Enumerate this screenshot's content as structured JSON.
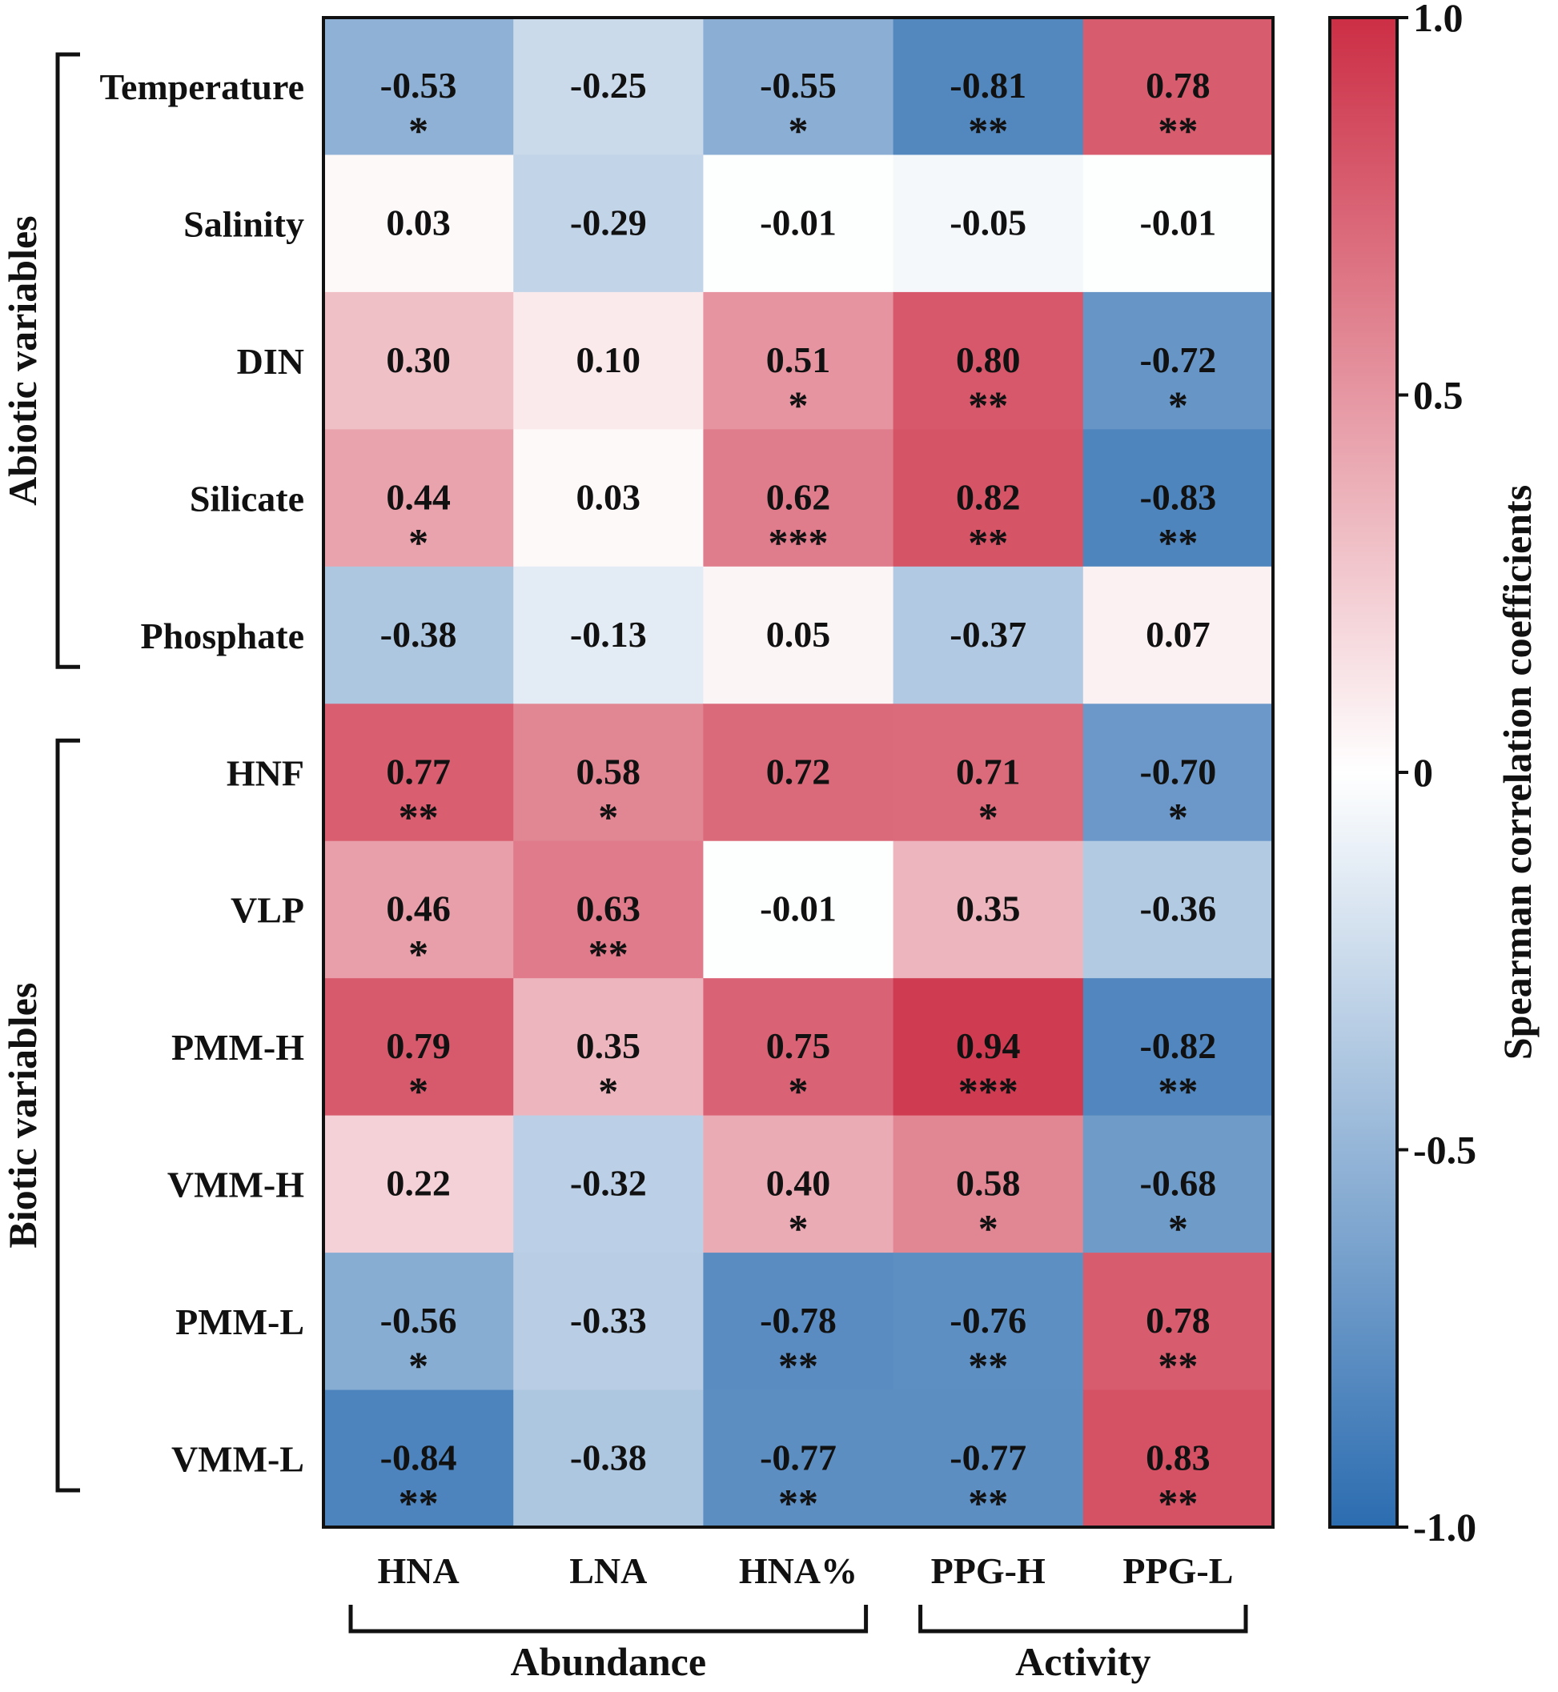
{
  "chart_data": {
    "type": "heatmap",
    "rows": [
      "Temperature",
      "Salinity",
      "DIN",
      "Silicate",
      "Phosphate",
      "HNF",
      "VLP",
      "PMM-H",
      "VMM-H",
      "PMM-L",
      "VMM-L"
    ],
    "columns": [
      "HNA",
      "LNA",
      "HNA%",
      "PPG-H",
      "PPG-L"
    ],
    "values": [
      [
        -0.53,
        -0.25,
        -0.55,
        -0.81,
        0.78
      ],
      [
        0.03,
        -0.29,
        -0.01,
        -0.05,
        -0.01
      ],
      [
        0.3,
        0.1,
        0.51,
        0.8,
        -0.72
      ],
      [
        0.44,
        0.03,
        0.62,
        0.82,
        -0.83
      ],
      [
        -0.38,
        -0.13,
        0.05,
        -0.37,
        0.07
      ],
      [
        0.77,
        0.58,
        0.72,
        0.71,
        -0.7
      ],
      [
        0.46,
        0.63,
        -0.01,
        0.35,
        -0.36
      ],
      [
        0.79,
        0.35,
        0.75,
        0.94,
        -0.82
      ],
      [
        0.22,
        -0.32,
        0.4,
        0.58,
        -0.68
      ],
      [
        -0.56,
        -0.33,
        -0.78,
        -0.76,
        0.78
      ],
      [
        -0.84,
        -0.38,
        -0.77,
        -0.77,
        0.83
      ]
    ],
    "value_labels": [
      [
        "-0.53",
        "-0.25",
        "-0.55",
        "-0.81",
        "0.78"
      ],
      [
        "0.03",
        "-0.29",
        "-0.01",
        "-0.05",
        "-0.01"
      ],
      [
        "0.30",
        "0.10",
        "0.51",
        "0.80",
        "-0.72"
      ],
      [
        "0.44",
        "0.03",
        "0.62",
        "0.82",
        "-0.83"
      ],
      [
        "-0.38",
        "-0.13",
        "0.05",
        "-0.37",
        "0.07"
      ],
      [
        "0.77",
        "0.58",
        "0.72",
        "0.71",
        "-0.70"
      ],
      [
        "0.46",
        "0.63",
        "-0.01",
        "0.35",
        "-0.36"
      ],
      [
        "0.79",
        "0.35",
        "0.75",
        "0.94",
        "-0.82"
      ],
      [
        "0.22",
        "-0.32",
        "0.40",
        "0.58",
        "-0.68"
      ],
      [
        "-0.56",
        "-0.33",
        "-0.78",
        "-0.76",
        "0.78"
      ],
      [
        "-0.84",
        "-0.38",
        "-0.77",
        "-0.77",
        "0.83"
      ]
    ],
    "significance": [
      [
        "*",
        "",
        "*",
        "**",
        "**"
      ],
      [
        "",
        "",
        "",
        "",
        ""
      ],
      [
        "",
        "",
        "*",
        "**",
        "*"
      ],
      [
        "*",
        "",
        "***",
        "**",
        "**"
      ],
      [
        "",
        "",
        "",
        "",
        ""
      ],
      [
        "**",
        "*",
        "",
        "*",
        "*"
      ],
      [
        "*",
        "**",
        "",
        "",
        ""
      ],
      [
        "*",
        "*",
        "*",
        "***",
        "**"
      ],
      [
        "",
        "",
        "*",
        "*",
        "*"
      ],
      [
        "*",
        "",
        "**",
        "**",
        "**"
      ],
      [
        "**",
        "",
        "**",
        "**",
        "**"
      ]
    ],
    "row_groups": [
      {
        "label": "Abiotic variables",
        "start": 0,
        "end": 4
      },
      {
        "label": "Biotic variables",
        "start": 5,
        "end": 10
      }
    ],
    "column_groups": [
      {
        "label": "Abundance",
        "start": 0,
        "end": 2
      },
      {
        "label": "Activity",
        "start": 3,
        "end": 4
      }
    ],
    "colorbar": {
      "label": "Spearman correlation coefficients",
      "range": [
        -1.0,
        1.0
      ],
      "ticks": [
        1.0,
        0.5,
        0,
        -0.5,
        -1.0
      ],
      "tick_labels": [
        "1.0",
        "0.5",
        "0",
        "-0.5",
        "-1.0"
      ],
      "colors": {
        "negative": "#2b6cb0",
        "zero": "#ffffff",
        "positive": "#cc2e45"
      }
    }
  }
}
